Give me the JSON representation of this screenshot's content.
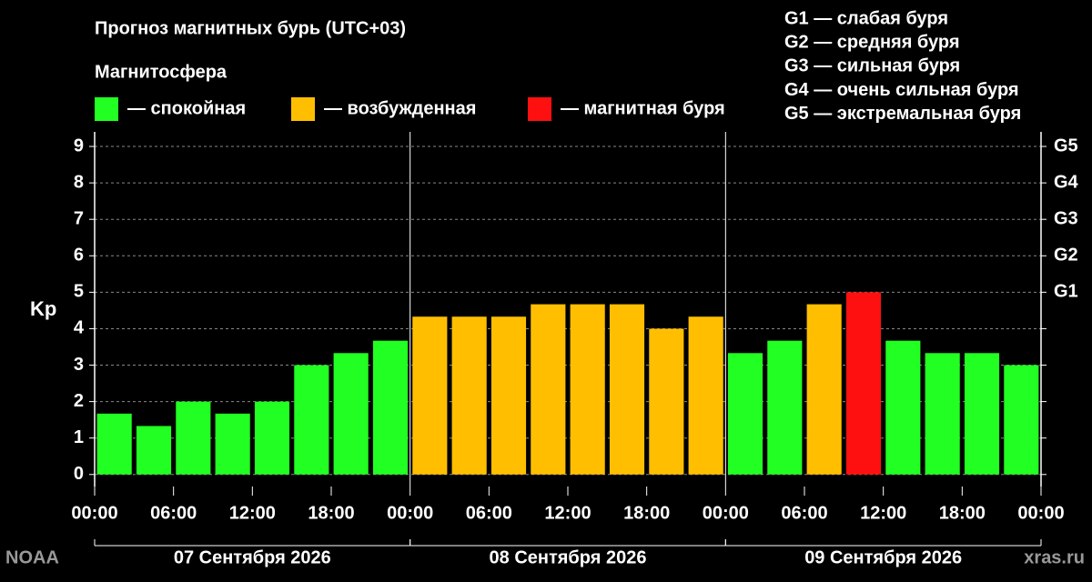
{
  "chart_data": {
    "type": "bar",
    "title": "Прогноз магнитных бурь (UTC+03)",
    "subtitle": "Магнитосфера",
    "legend": [
      {
        "label": "— спокойная",
        "color": "#22ff22"
      },
      {
        "label": "— возбужденная",
        "color": "#ffbf00"
      },
      {
        "label": "— магнитная буря",
        "color": "#ff1010"
      }
    ],
    "scale_notes": [
      "G1 — слабая буря",
      "G2 — средняя буря",
      "G3 — сильная буря",
      "G4 — очень сильная буря",
      "G5 — экстремальная буря"
    ],
    "ylabel": "Kp",
    "x": [
      1.5,
      4.5,
      7.5,
      10.5,
      13.5,
      16.5,
      19.5,
      22.5,
      25.5,
      28.5,
      31.5,
      34.5,
      37.5,
      40.5,
      43.5,
      46.5,
      49.5,
      52.5,
      55.5,
      58.5,
      61.5,
      64.5,
      67.5,
      70.5
    ],
    "values": [
      1.67,
      1.33,
      2,
      1.67,
      2,
      3,
      3.33,
      3.67,
      4.33,
      4.33,
      4.33,
      4.67,
      4.67,
      4.67,
      4,
      4.33,
      3.33,
      3.67,
      4.67,
      5,
      3.67,
      3.33,
      3.33,
      3
    ],
    "colors": [
      "#22ff22",
      "#22ff22",
      "#22ff22",
      "#22ff22",
      "#22ff22",
      "#22ff22",
      "#22ff22",
      "#22ff22",
      "#ffbf00",
      "#ffbf00",
      "#ffbf00",
      "#ffbf00",
      "#ffbf00",
      "#ffbf00",
      "#ffbf00",
      "#ffbf00",
      "#22ff22",
      "#22ff22",
      "#ffbf00",
      "#ff1010",
      "#22ff22",
      "#22ff22",
      "#22ff22",
      "#22ff22"
    ],
    "xlim": [
      0,
      72
    ],
    "xticks": [
      {
        "value": 0,
        "label": "00:00"
      },
      {
        "value": 6,
        "label": "06:00"
      },
      {
        "value": 12,
        "label": "12:00"
      },
      {
        "value": 18,
        "label": "18:00"
      },
      {
        "value": 24,
        "label": "00:00"
      },
      {
        "value": 30,
        "label": "06:00"
      },
      {
        "value": 36,
        "label": "12:00"
      },
      {
        "value": 42,
        "label": "18:00"
      },
      {
        "value": 48,
        "label": "00:00"
      },
      {
        "value": 54,
        "label": "06:00"
      },
      {
        "value": 60,
        "label": "12:00"
      },
      {
        "value": 66,
        "label": "18:00"
      },
      {
        "value": 72,
        "label": "00:00"
      }
    ],
    "days": [
      {
        "label": "07 Сентября 2026",
        "start": 0,
        "end": 24
      },
      {
        "label": "08 Сентября 2026",
        "start": 24,
        "end": 48
      },
      {
        "label": "09 Сентября 2026",
        "start": 48,
        "end": 72
      }
    ],
    "ylim": [
      -0.33,
      9.4
    ],
    "yticks": [
      0,
      1,
      2,
      3,
      4,
      5,
      6,
      7,
      8,
      9
    ],
    "y2lim": [
      -0.33,
      9.4
    ],
    "y2ticks": [
      {
        "value": 5,
        "label": "G1"
      },
      {
        "value": 6,
        "label": "G2"
      },
      {
        "value": 7,
        "label": "G3"
      },
      {
        "value": 8,
        "label": "G4"
      },
      {
        "value": 9,
        "label": "G5"
      }
    ],
    "grid": true,
    "source": "NOAA",
    "site": "xras.ru"
  }
}
